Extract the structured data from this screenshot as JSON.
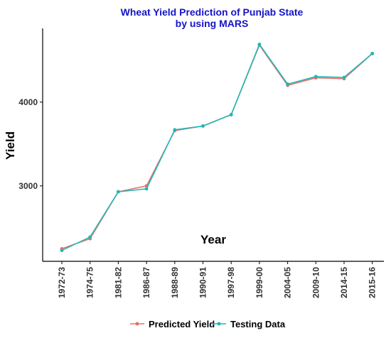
{
  "chart_data": {
    "type": "line",
    "title_line1": "Wheat Yield Prediction of Punjab State",
    "title_line2": "by using MARS",
    "xlabel": "Year",
    "ylabel": "Yield",
    "categories": [
      "1972-73",
      "1974-75",
      "1981-82",
      "1986-87",
      "1988-89",
      "1990-91",
      "1997-98",
      "1999-00",
      "2004-05",
      "2009-10",
      "2014-15",
      "2015-16"
    ],
    "ylim": [
      2100,
      4880
    ],
    "yticks": [
      3000,
      4000
    ],
    "grid": false,
    "legend_position": "bottom",
    "series": [
      {
        "name": "Predicted Yield",
        "color": "#e8706a",
        "values": [
          2250,
          2370,
          2930,
          3000,
          3660,
          3715,
          3850,
          4680,
          4200,
          4290,
          4280,
          4580
        ]
      },
      {
        "name": "Testing Data",
        "color": "#1fb8b8",
        "values": [
          2230,
          2390,
          2930,
          2965,
          3670,
          3715,
          3850,
          4690,
          4215,
          4305,
          4295,
          4580
        ]
      }
    ]
  }
}
